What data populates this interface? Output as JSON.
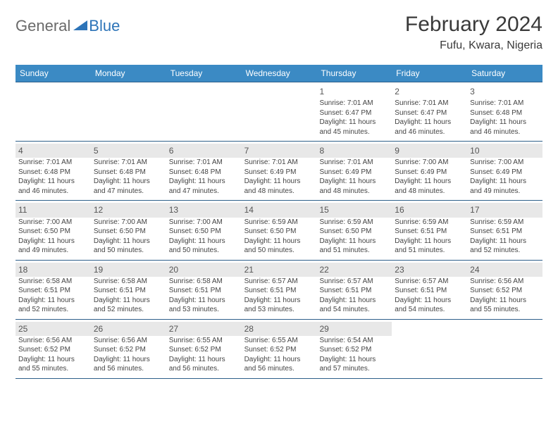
{
  "brand": {
    "word1": "General",
    "word2": "Blue"
  },
  "header": {
    "month_title": "February 2024",
    "location": "Fufu, Kwara, Nigeria"
  },
  "colors": {
    "header_bar": "#3b8ac4",
    "week_divider": "#2d5f8a",
    "alt_daynum_bg": "#e8e8e8",
    "logo_gray": "#6a6a6a",
    "logo_blue": "#2d74b8",
    "text": "#444444"
  },
  "days_of_week": [
    "Sunday",
    "Monday",
    "Tuesday",
    "Wednesday",
    "Thursday",
    "Friday",
    "Saturday"
  ],
  "weeks": [
    [
      null,
      null,
      null,
      null,
      {
        "n": "1",
        "sr": "7:01 AM",
        "ss": "6:47 PM",
        "d1": "11 hours",
        "d2": "and 45 minutes."
      },
      {
        "n": "2",
        "sr": "7:01 AM",
        "ss": "6:47 PM",
        "d1": "11 hours",
        "d2": "and 46 minutes."
      },
      {
        "n": "3",
        "sr": "7:01 AM",
        "ss": "6:48 PM",
        "d1": "11 hours",
        "d2": "and 46 minutes."
      }
    ],
    [
      {
        "n": "4",
        "sr": "7:01 AM",
        "ss": "6:48 PM",
        "d1": "11 hours",
        "d2": "and 46 minutes."
      },
      {
        "n": "5",
        "sr": "7:01 AM",
        "ss": "6:48 PM",
        "d1": "11 hours",
        "d2": "and 47 minutes."
      },
      {
        "n": "6",
        "sr": "7:01 AM",
        "ss": "6:48 PM",
        "d1": "11 hours",
        "d2": "and 47 minutes."
      },
      {
        "n": "7",
        "sr": "7:01 AM",
        "ss": "6:49 PM",
        "d1": "11 hours",
        "d2": "and 48 minutes."
      },
      {
        "n": "8",
        "sr": "7:01 AM",
        "ss": "6:49 PM",
        "d1": "11 hours",
        "d2": "and 48 minutes."
      },
      {
        "n": "9",
        "sr": "7:00 AM",
        "ss": "6:49 PM",
        "d1": "11 hours",
        "d2": "and 48 minutes."
      },
      {
        "n": "10",
        "sr": "7:00 AM",
        "ss": "6:49 PM",
        "d1": "11 hours",
        "d2": "and 49 minutes."
      }
    ],
    [
      {
        "n": "11",
        "sr": "7:00 AM",
        "ss": "6:50 PM",
        "d1": "11 hours",
        "d2": "and 49 minutes."
      },
      {
        "n": "12",
        "sr": "7:00 AM",
        "ss": "6:50 PM",
        "d1": "11 hours",
        "d2": "and 50 minutes."
      },
      {
        "n": "13",
        "sr": "7:00 AM",
        "ss": "6:50 PM",
        "d1": "11 hours",
        "d2": "and 50 minutes."
      },
      {
        "n": "14",
        "sr": "6:59 AM",
        "ss": "6:50 PM",
        "d1": "11 hours",
        "d2": "and 50 minutes."
      },
      {
        "n": "15",
        "sr": "6:59 AM",
        "ss": "6:50 PM",
        "d1": "11 hours",
        "d2": "and 51 minutes."
      },
      {
        "n": "16",
        "sr": "6:59 AM",
        "ss": "6:51 PM",
        "d1": "11 hours",
        "d2": "and 51 minutes."
      },
      {
        "n": "17",
        "sr": "6:59 AM",
        "ss": "6:51 PM",
        "d1": "11 hours",
        "d2": "and 52 minutes."
      }
    ],
    [
      {
        "n": "18",
        "sr": "6:58 AM",
        "ss": "6:51 PM",
        "d1": "11 hours",
        "d2": "and 52 minutes."
      },
      {
        "n": "19",
        "sr": "6:58 AM",
        "ss": "6:51 PM",
        "d1": "11 hours",
        "d2": "and 52 minutes."
      },
      {
        "n": "20",
        "sr": "6:58 AM",
        "ss": "6:51 PM",
        "d1": "11 hours",
        "d2": "and 53 minutes."
      },
      {
        "n": "21",
        "sr": "6:57 AM",
        "ss": "6:51 PM",
        "d1": "11 hours",
        "d2": "and 53 minutes."
      },
      {
        "n": "22",
        "sr": "6:57 AM",
        "ss": "6:51 PM",
        "d1": "11 hours",
        "d2": "and 54 minutes."
      },
      {
        "n": "23",
        "sr": "6:57 AM",
        "ss": "6:51 PM",
        "d1": "11 hours",
        "d2": "and 54 minutes."
      },
      {
        "n": "24",
        "sr": "6:56 AM",
        "ss": "6:52 PM",
        "d1": "11 hours",
        "d2": "and 55 minutes."
      }
    ],
    [
      {
        "n": "25",
        "sr": "6:56 AM",
        "ss": "6:52 PM",
        "d1": "11 hours",
        "d2": "and 55 minutes."
      },
      {
        "n": "26",
        "sr": "6:56 AM",
        "ss": "6:52 PM",
        "d1": "11 hours",
        "d2": "and 56 minutes."
      },
      {
        "n": "27",
        "sr": "6:55 AM",
        "ss": "6:52 PM",
        "d1": "11 hours",
        "d2": "and 56 minutes."
      },
      {
        "n": "28",
        "sr": "6:55 AM",
        "ss": "6:52 PM",
        "d1": "11 hours",
        "d2": "and 56 minutes."
      },
      {
        "n": "29",
        "sr": "6:54 AM",
        "ss": "6:52 PM",
        "d1": "11 hours",
        "d2": "and 57 minutes."
      },
      null,
      null
    ]
  ],
  "labels": {
    "sunrise": "Sunrise: ",
    "sunset": "Sunset: ",
    "daylight": "Daylight: "
  }
}
